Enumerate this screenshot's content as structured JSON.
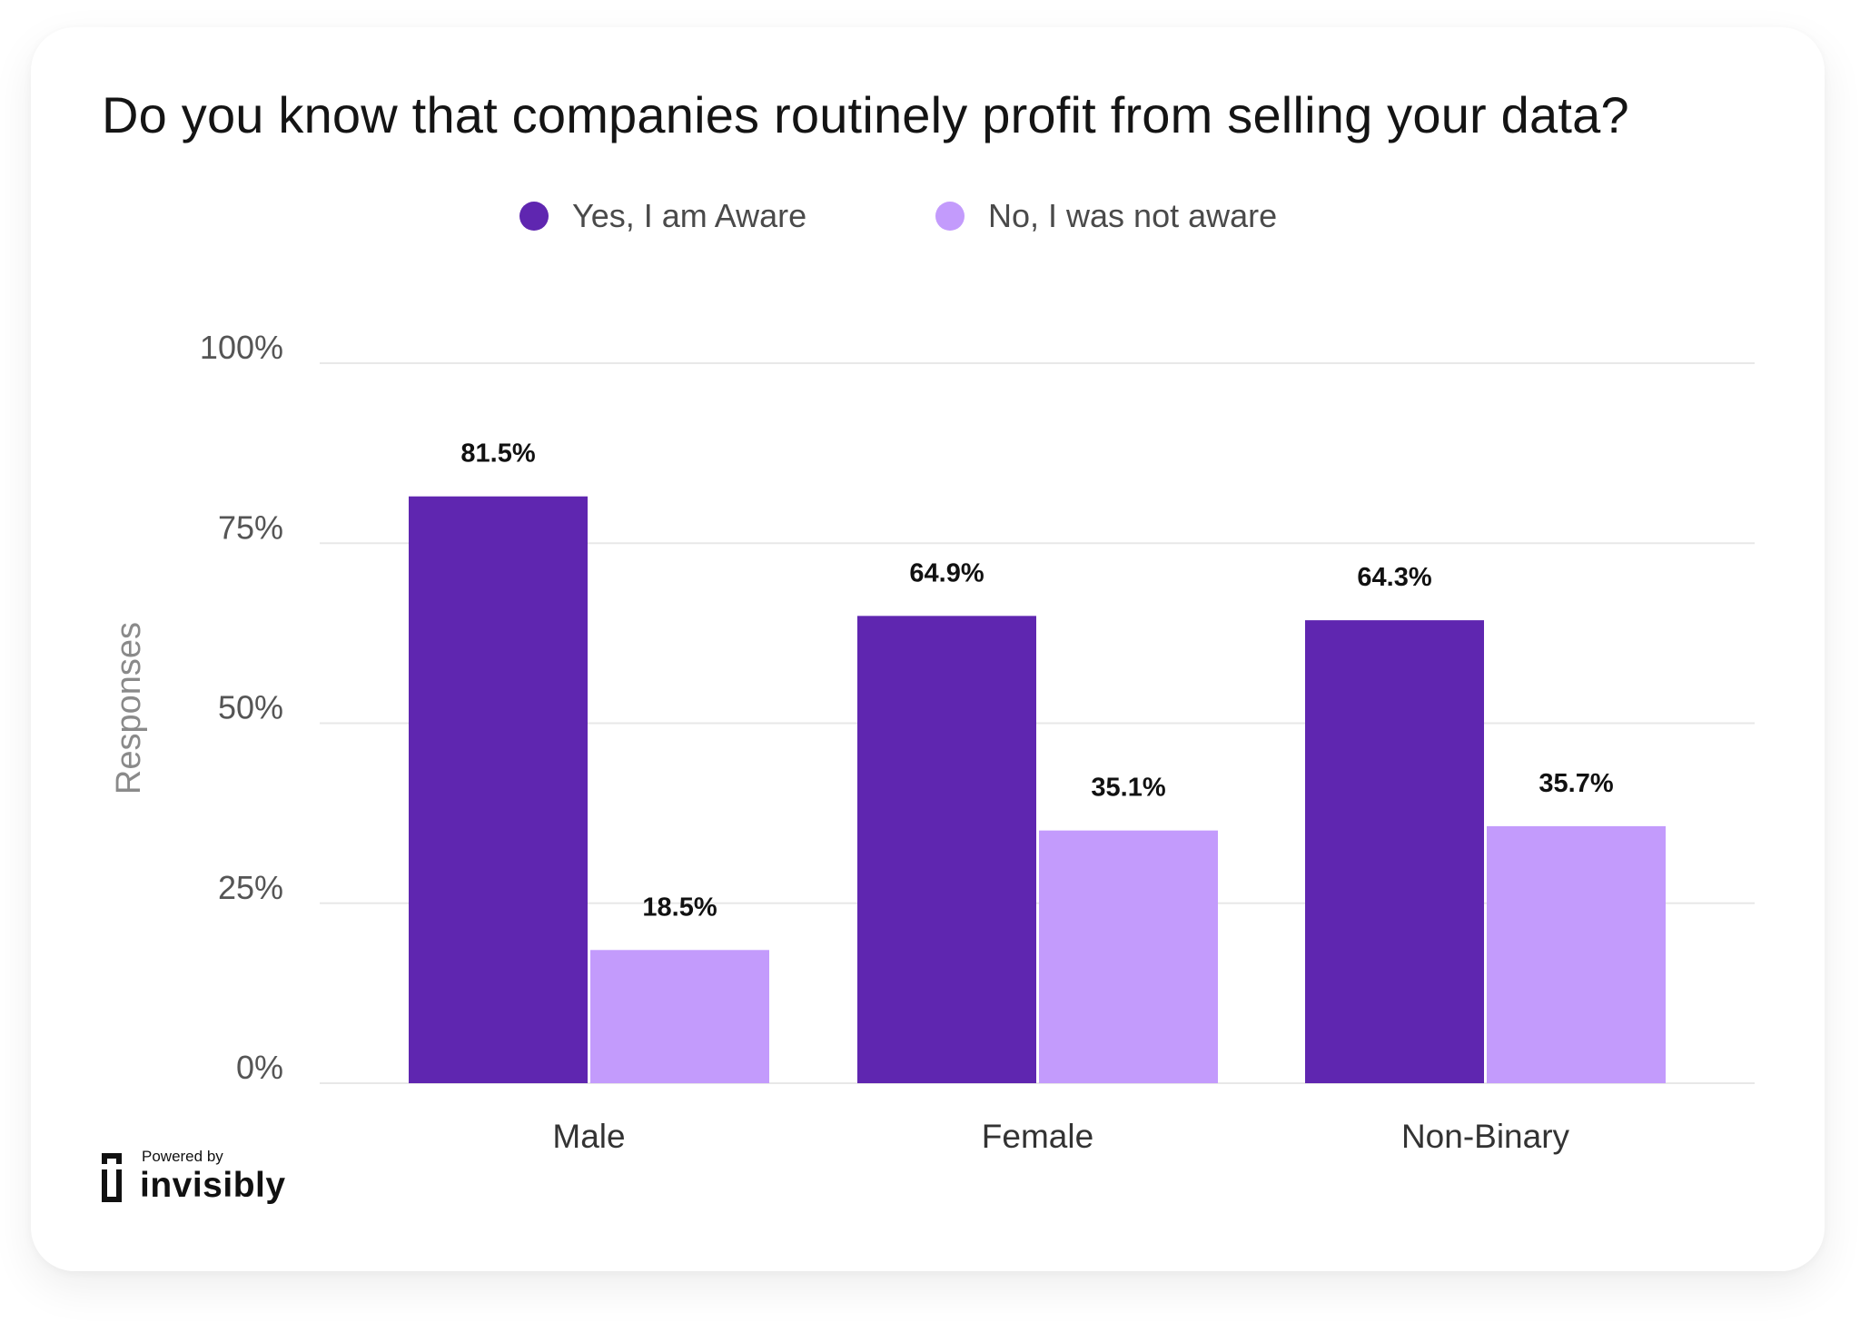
{
  "chart_data": {
    "type": "bar",
    "title": "Do you know that companies routinely profit from selling your data?",
    "ylabel": "Responses",
    "xlabel": "",
    "categories": [
      "Male",
      "Female",
      "Non-Binary"
    ],
    "series": [
      {
        "name": "Yes, I am Aware",
        "values": [
          81.5,
          64.9,
          64.3
        ],
        "labels": [
          "81.5%",
          "64.9%",
          "64.3%"
        ],
        "color": "#5f26b0"
      },
      {
        "name": "No, I was not aware",
        "values": [
          18.5,
          35.1,
          35.7
        ],
        "labels": [
          "18.5%",
          "35.1%",
          "35.7%"
        ],
        "color": "#c39bfc"
      }
    ],
    "ylim": [
      0,
      100
    ],
    "yticks": [
      "0%",
      "25%",
      "50%",
      "75%",
      "100%"
    ],
    "ytick_values": [
      0,
      25,
      50,
      75,
      100
    ],
    "grid": true,
    "legend": "top-center"
  },
  "footer": {
    "powered_by": "Powered by",
    "brand": "invisibly"
  },
  "colors": {
    "gridline": "#e8e8e8",
    "axis_text": "#555555",
    "label_text": "#111111"
  }
}
